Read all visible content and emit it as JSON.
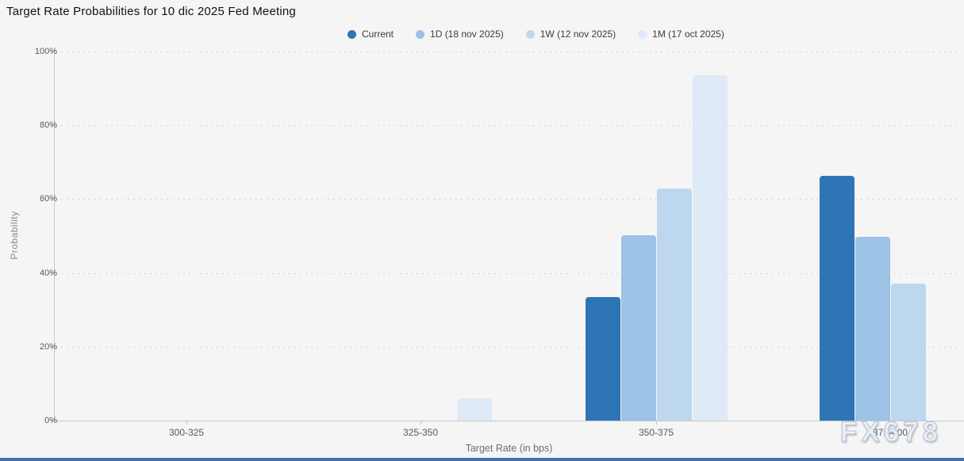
{
  "title": "Target Rate Probabilities for 10 dic 2025 Fed Meeting",
  "watermark": "FX678",
  "legend": [
    {
      "label": "Current",
      "color": "#2e75b6"
    },
    {
      "label": "1D (18 nov 2025)",
      "color": "#9cc2e5"
    },
    {
      "label": "1W (12 nov 2025)",
      "color": "#bdd7ee"
    },
    {
      "label": "1M (17 oct 2025)",
      "color": "#deebf6"
    }
  ],
  "chart_data": {
    "type": "bar",
    "title": "Target Rate Probabilities for 10 dic 2025 Fed Meeting",
    "categories": [
      "300-325",
      "325-350",
      "350-375",
      "375-400"
    ],
    "series": [
      {
        "name": "Current",
        "color": "#2e75b6",
        "values": [
          0,
          0,
          33.5,
          66.4
        ]
      },
      {
        "name": "1D (18 nov 2025)",
        "color": "#9cc2e5",
        "values": [
          0,
          0,
          50.2,
          49.8
        ]
      },
      {
        "name": "1W (12 nov 2025)",
        "color": "#bdd7ee",
        "values": [
          0,
          0,
          62.8,
          37.1
        ]
      },
      {
        "name": "1M (17 oct 2025)",
        "color": "#deebf6",
        "values": [
          0,
          6.1,
          93.6,
          0
        ]
      }
    ],
    "xlabel": "Target Rate (in bps)",
    "ylabel": "Probability",
    "ylim": [
      0,
      100
    ],
    "ytick_step": 20,
    "ytick_labels": [
      "0%",
      "20%",
      "40%",
      "60%",
      "80%",
      "100%"
    ],
    "grid": "dotted-horizontal",
    "legend_position": "top"
  }
}
